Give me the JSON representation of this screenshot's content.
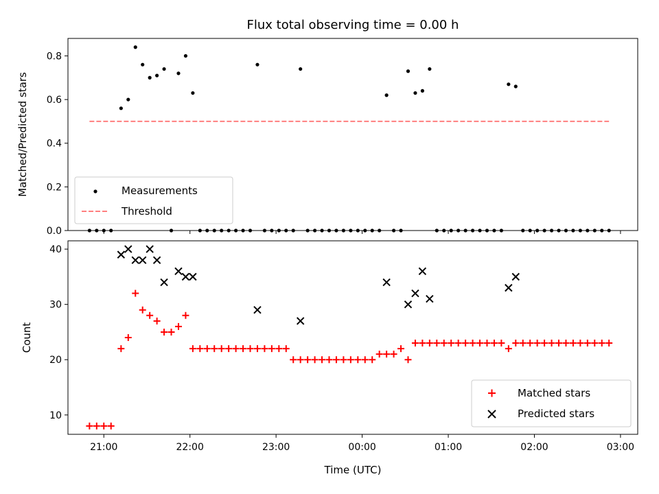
{
  "chart_data": [
    {
      "type": "scatter",
      "title": "Flux total observing time = 0.00 h",
      "xlabel": "",
      "ylabel": "Matched/Predicted stars",
      "xlim": [
        "20:35",
        "03:12"
      ],
      "ylim": [
        0,
        0.88
      ],
      "yticks": [
        0.0,
        0.2,
        0.4,
        0.6,
        0.8
      ],
      "ytick_labels": [
        "0.0",
        "0.2",
        "0.4",
        "0.6",
        "0.8"
      ],
      "legend_position": "lower-left",
      "grid": false,
      "colors": {
        "measurements": "#000000",
        "threshold": "#ff7f7f"
      },
      "series": [
        {
          "name": "Measurements",
          "kind": "scatter",
          "points": [
            [
              "20:50",
              0
            ],
            [
              "20:55",
              0
            ],
            [
              "21:00",
              0
            ],
            [
              "21:05",
              0
            ],
            [
              "21:12",
              0.56
            ],
            [
              "21:17",
              0.6
            ],
            [
              "21:22",
              0.84
            ],
            [
              "21:27",
              0.76
            ],
            [
              "21:32",
              0.7
            ],
            [
              "21:37",
              0.71
            ],
            [
              "21:42",
              0.74
            ],
            [
              "21:47",
              0
            ],
            [
              "21:52",
              0.72
            ],
            [
              "21:57",
              0.8
            ],
            [
              "22:02",
              0.63
            ],
            [
              "22:07",
              0
            ],
            [
              "22:12",
              0
            ],
            [
              "22:17",
              0
            ],
            [
              "22:22",
              0
            ],
            [
              "22:27",
              0
            ],
            [
              "22:32",
              0
            ],
            [
              "22:37",
              0
            ],
            [
              "22:42",
              0
            ],
            [
              "22:47",
              0.76
            ],
            [
              "22:52",
              0
            ],
            [
              "22:57",
              0
            ],
            [
              "23:02",
              0
            ],
            [
              "23:07",
              0
            ],
            [
              "23:12",
              0
            ],
            [
              "23:17",
              0.74
            ],
            [
              "23:22",
              0
            ],
            [
              "23:27",
              0
            ],
            [
              "23:32",
              0
            ],
            [
              "23:37",
              0
            ],
            [
              "23:42",
              0
            ],
            [
              "23:47",
              0
            ],
            [
              "23:52",
              0
            ],
            [
              "23:57",
              0
            ],
            [
              "00:02",
              0
            ],
            [
              "00:07",
              0
            ],
            [
              "00:12",
              0
            ],
            [
              "00:17",
              0.62
            ],
            [
              "00:22",
              0
            ],
            [
              "00:27",
              0
            ],
            [
              "00:32",
              0.73
            ],
            [
              "00:37",
              0.63
            ],
            [
              "00:42",
              0.64
            ],
            [
              "00:47",
              0.74
            ],
            [
              "00:52",
              0
            ],
            [
              "00:57",
              0
            ],
            [
              "01:02",
              0
            ],
            [
              "01:07",
              0
            ],
            [
              "01:12",
              0
            ],
            [
              "01:17",
              0
            ],
            [
              "01:22",
              0
            ],
            [
              "01:27",
              0
            ],
            [
              "01:32",
              0
            ],
            [
              "01:37",
              0
            ],
            [
              "01:42",
              0.67
            ],
            [
              "01:47",
              0.66
            ],
            [
              "01:52",
              0
            ],
            [
              "01:57",
              0
            ],
            [
              "02:02",
              0
            ],
            [
              "02:07",
              0
            ],
            [
              "02:12",
              0
            ],
            [
              "02:17",
              0
            ],
            [
              "02:22",
              0
            ],
            [
              "02:27",
              0
            ],
            [
              "02:32",
              0
            ],
            [
              "02:37",
              0
            ],
            [
              "02:42",
              0
            ],
            [
              "02:47",
              0
            ],
            [
              "02:52",
              0
            ]
          ]
        },
        {
          "name": "Threshold",
          "kind": "dashed-line",
          "x": [
            "20:50",
            "02:52"
          ],
          "y": [
            0.5,
            0.5
          ]
        }
      ]
    },
    {
      "type": "scatter",
      "title": "",
      "xlabel": "Time (UTC)",
      "ylabel": "Count",
      "xlim": [
        "20:35",
        "03:12"
      ],
      "ylim": [
        6.5,
        41.5
      ],
      "yticks": [
        10,
        20,
        30,
        40
      ],
      "ytick_labels": [
        "10",
        "20",
        "30",
        "40"
      ],
      "xticks": [
        "21:00",
        "22:00",
        "23:00",
        "00:00",
        "01:00",
        "02:00",
        "03:00"
      ],
      "xtick_labels": [
        "21:00",
        "22:00",
        "23:00",
        "00:00",
        "01:00",
        "02:00",
        "03:00"
      ],
      "legend_position": "lower-right",
      "grid": false,
      "colors": {
        "matched": "#ff0000",
        "predicted": "#000000"
      },
      "series": [
        {
          "name": "Matched stars",
          "marker": "plus",
          "points": [
            [
              "20:50",
              8
            ],
            [
              "20:55",
              8
            ],
            [
              "21:00",
              8
            ],
            [
              "21:05",
              8
            ],
            [
              "21:12",
              22
            ],
            [
              "21:17",
              24
            ],
            [
              "21:22",
              32
            ],
            [
              "21:27",
              29
            ],
            [
              "21:32",
              28
            ],
            [
              "21:37",
              27
            ],
            [
              "21:42",
              25
            ],
            [
              "21:47",
              25
            ],
            [
              "21:52",
              26
            ],
            [
              "21:57",
              28
            ],
            [
              "22:02",
              22
            ],
            [
              "22:07",
              22
            ],
            [
              "22:12",
              22
            ],
            [
              "22:17",
              22
            ],
            [
              "22:22",
              22
            ],
            [
              "22:27",
              22
            ],
            [
              "22:32",
              22
            ],
            [
              "22:37",
              22
            ],
            [
              "22:42",
              22
            ],
            [
              "22:47",
              22
            ],
            [
              "22:52",
              22
            ],
            [
              "22:57",
              22
            ],
            [
              "23:02",
              22
            ],
            [
              "23:07",
              22
            ],
            [
              "23:12",
              20
            ],
            [
              "23:17",
              20
            ],
            [
              "23:22",
              20
            ],
            [
              "23:27",
              20
            ],
            [
              "23:32",
              20
            ],
            [
              "23:37",
              20
            ],
            [
              "23:42",
              20
            ],
            [
              "23:47",
              20
            ],
            [
              "23:52",
              20
            ],
            [
              "23:57",
              20
            ],
            [
              "00:02",
              20
            ],
            [
              "00:07",
              20
            ],
            [
              "00:12",
              21
            ],
            [
              "00:17",
              21
            ],
            [
              "00:22",
              21
            ],
            [
              "00:27",
              22
            ],
            [
              "00:32",
              20
            ],
            [
              "00:37",
              23
            ],
            [
              "00:42",
              23
            ],
            [
              "00:47",
              23
            ],
            [
              "00:52",
              23
            ],
            [
              "00:57",
              23
            ],
            [
              "01:02",
              23
            ],
            [
              "01:07",
              23
            ],
            [
              "01:12",
              23
            ],
            [
              "01:17",
              23
            ],
            [
              "01:22",
              23
            ],
            [
              "01:27",
              23
            ],
            [
              "01:32",
              23
            ],
            [
              "01:37",
              23
            ],
            [
              "01:42",
              22
            ],
            [
              "01:47",
              23
            ],
            [
              "01:52",
              23
            ],
            [
              "01:57",
              23
            ],
            [
              "02:02",
              23
            ],
            [
              "02:07",
              23
            ],
            [
              "02:12",
              23
            ],
            [
              "02:17",
              23
            ],
            [
              "02:22",
              23
            ],
            [
              "02:27",
              23
            ],
            [
              "02:32",
              23
            ],
            [
              "02:37",
              23
            ],
            [
              "02:42",
              23
            ],
            [
              "02:47",
              23
            ],
            [
              "02:52",
              23
            ]
          ]
        },
        {
          "name": "Predicted stars",
          "marker": "x",
          "points": [
            [
              "21:12",
              39
            ],
            [
              "21:17",
              40
            ],
            [
              "21:22",
              38
            ],
            [
              "21:27",
              38
            ],
            [
              "21:32",
              40
            ],
            [
              "21:37",
              38
            ],
            [
              "21:42",
              34
            ],
            [
              "21:52",
              36
            ],
            [
              "21:57",
              35
            ],
            [
              "22:02",
              35
            ],
            [
              "22:47",
              29
            ],
            [
              "23:17",
              27
            ],
            [
              "00:17",
              34
            ],
            [
              "00:32",
              30
            ],
            [
              "00:37",
              32
            ],
            [
              "00:42",
              36
            ],
            [
              "00:47",
              31
            ],
            [
              "01:42",
              33
            ],
            [
              "01:47",
              35
            ]
          ]
        }
      ]
    }
  ]
}
